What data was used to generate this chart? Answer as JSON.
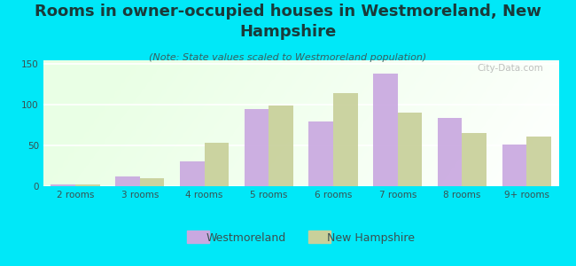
{
  "title": "Rooms in owner-occupied houses in Westmoreland, New\nHampshire",
  "subtitle": "(Note: State values scaled to Westmoreland population)",
  "categories": [
    "2 rooms",
    "3 rooms",
    "4 rooms",
    "5 rooms",
    "6 rooms",
    "7 rooms",
    "8 rooms",
    "9+ rooms"
  ],
  "westmoreland": [
    2,
    12,
    31,
    95,
    79,
    138,
    84,
    51
  ],
  "new_hampshire": [
    2,
    10,
    53,
    99,
    114,
    90,
    65,
    61
  ],
  "westmoreland_color": "#c9a8e0",
  "new_hampshire_color": "#c8d09a",
  "background_color": "#00e8f8",
  "ylim": [
    0,
    155
  ],
  "yticks": [
    0,
    50,
    100,
    150
  ],
  "bar_width": 0.38,
  "title_fontsize": 13,
  "subtitle_fontsize": 8,
  "tick_fontsize": 7.5,
  "legend_fontsize": 9,
  "title_color": "#1a3a3a",
  "subtitle_color": "#3a6060",
  "tick_color": "#3a5050",
  "watermark": "City-Data.com"
}
